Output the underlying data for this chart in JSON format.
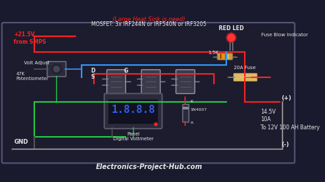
{
  "bg_color": "#1a1a2e",
  "website": "Electronics-Project-Hub.com",
  "colors": {
    "red": "#ff2222",
    "blue": "#3399ff",
    "green": "#22cc44",
    "white": "#e8e8e8",
    "gray": "#888888",
    "led_red": "#ff3333",
    "display_blue": "#3366ff"
  },
  "labels": {
    "voltage": "+21.5V\nfrom SMPS",
    "volt_adjust": "Volt Adjust",
    "potentiometer": "47K\nPotentiometer",
    "heat_sink": "(Large Heat Sink is need)",
    "mosfet": "MOSFET: 3x IRF244N or IRF540N or IRF3205",
    "red_led": "RED LED",
    "fuse_blow": "Fuse Blow Indicator",
    "resistor": "1.5K",
    "fuse": "20A Fuse",
    "diode_label": "1N4007",
    "k_label": "K",
    "a_label": "A",
    "panel": "Panel\nDigital Voltmeter",
    "gnd": "GND",
    "positive": "(+)",
    "negative": "(-)",
    "output": "14.5V\n10A\nTo 12V 100 AH Battery",
    "g_label": "G",
    "d_label": "D",
    "s_label": "S"
  }
}
